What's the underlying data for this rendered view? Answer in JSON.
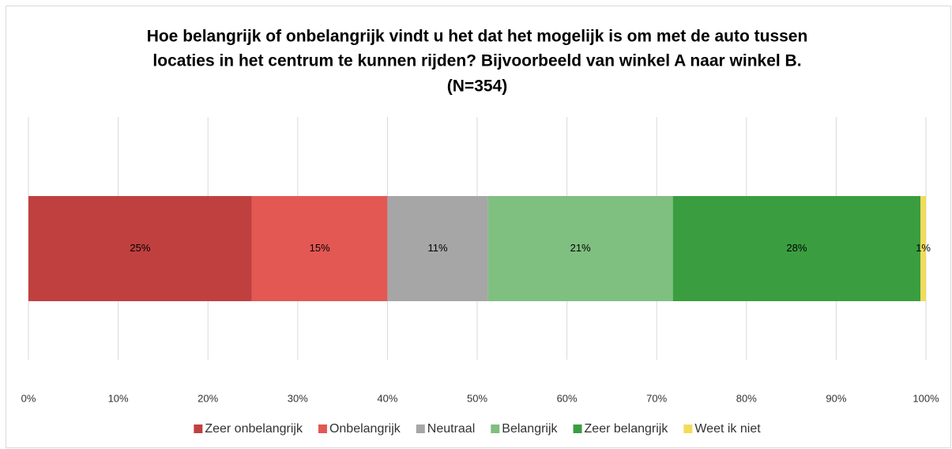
{
  "chart_data": {
    "type": "stacked_barh",
    "title": [
      "Hoe belangrijk of onbelangrijk vindt u het dat het mogelijk is om met de auto tussen",
      "locaties in het centrum te kunnen rijden? Bijvoorbeeld van winkel A naar winkel B.",
      "(N=354)"
    ],
    "series": [
      {
        "name": "Zeer onbelangrijk",
        "color": "#c0403f",
        "values": [
          24.9
        ],
        "value_labels": [
          "25%"
        ]
      },
      {
        "name": "Onbelangrijk",
        "color": "#e35853",
        "values": [
          15.1
        ],
        "value_labels": [
          "15%"
        ]
      },
      {
        "name": "Neutraal",
        "color": "#a6a6a6",
        "values": [
          11.2
        ],
        "value_labels": [
          "11%"
        ]
      },
      {
        "name": "Belangrijk",
        "color": "#7fbf80",
        "values": [
          20.6
        ],
        "value_labels": [
          "21%"
        ]
      },
      {
        "name": "Zeer belangrijk",
        "color": "#3a9e40",
        "values": [
          27.6
        ],
        "value_labels": [
          "28%"
        ]
      },
      {
        "name": "Weet ik niet",
        "color": "#f2dc5a",
        "values": [
          0.6
        ],
        "value_labels": [
          "1%"
        ]
      }
    ],
    "xlim": [
      0,
      100
    ],
    "xticks": [
      {
        "value": 0,
        "label": "0%"
      },
      {
        "value": 10,
        "label": "10%"
      },
      {
        "value": 20,
        "label": "20%"
      },
      {
        "value": 30,
        "label": "30%"
      },
      {
        "value": 40,
        "label": "40%"
      },
      {
        "value": 50,
        "label": "50%"
      },
      {
        "value": 60,
        "label": "60%"
      },
      {
        "value": 70,
        "label": "70%"
      },
      {
        "value": 80,
        "label": "80%"
      },
      {
        "value": 90,
        "label": "90%"
      },
      {
        "value": 100,
        "label": "100%"
      }
    ],
    "grid": true,
    "legend": "bottom"
  }
}
